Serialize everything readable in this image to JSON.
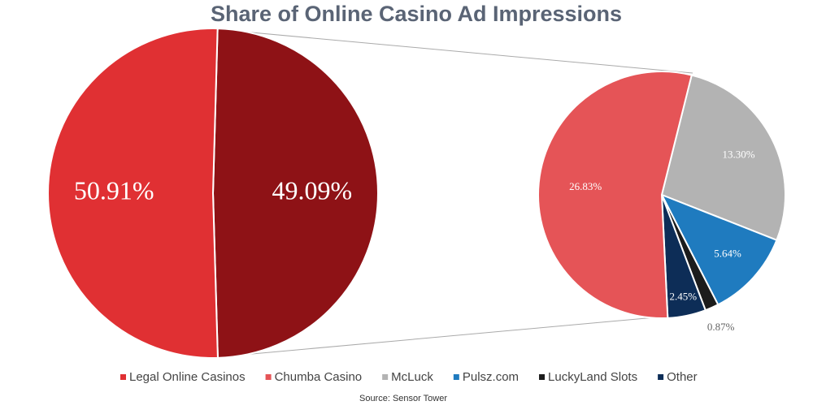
{
  "chart_data": [
    {
      "type": "pie",
      "title": "Share of Online Casino Ad Impressions",
      "categories": [
        "Legal Online Casinos",
        null
      ],
      "values": [
        50.91,
        49.09
      ],
      "value_labels": [
        "50.91%",
        "49.09%"
      ],
      "colors": [
        "#e03033",
        "#8e1216"
      ]
    },
    {
      "type": "pie",
      "source": "Source: Sensor Tower",
      "categories": [
        "Chumba Casino",
        "McLuck",
        "Pulsz.com",
        "LuckyLand Slots",
        "Other"
      ],
      "values": [
        26.83,
        13.3,
        5.64,
        0.87,
        2.45
      ],
      "value_labels": [
        "26.83%",
        "13.30%",
        "5.64%",
        "0.87%",
        "2.45%"
      ],
      "colors": [
        "#e55457",
        "#b3b3b3",
        "#1f7bbf",
        "#1c1c1c",
        "#0d2d57"
      ]
    }
  ]
}
